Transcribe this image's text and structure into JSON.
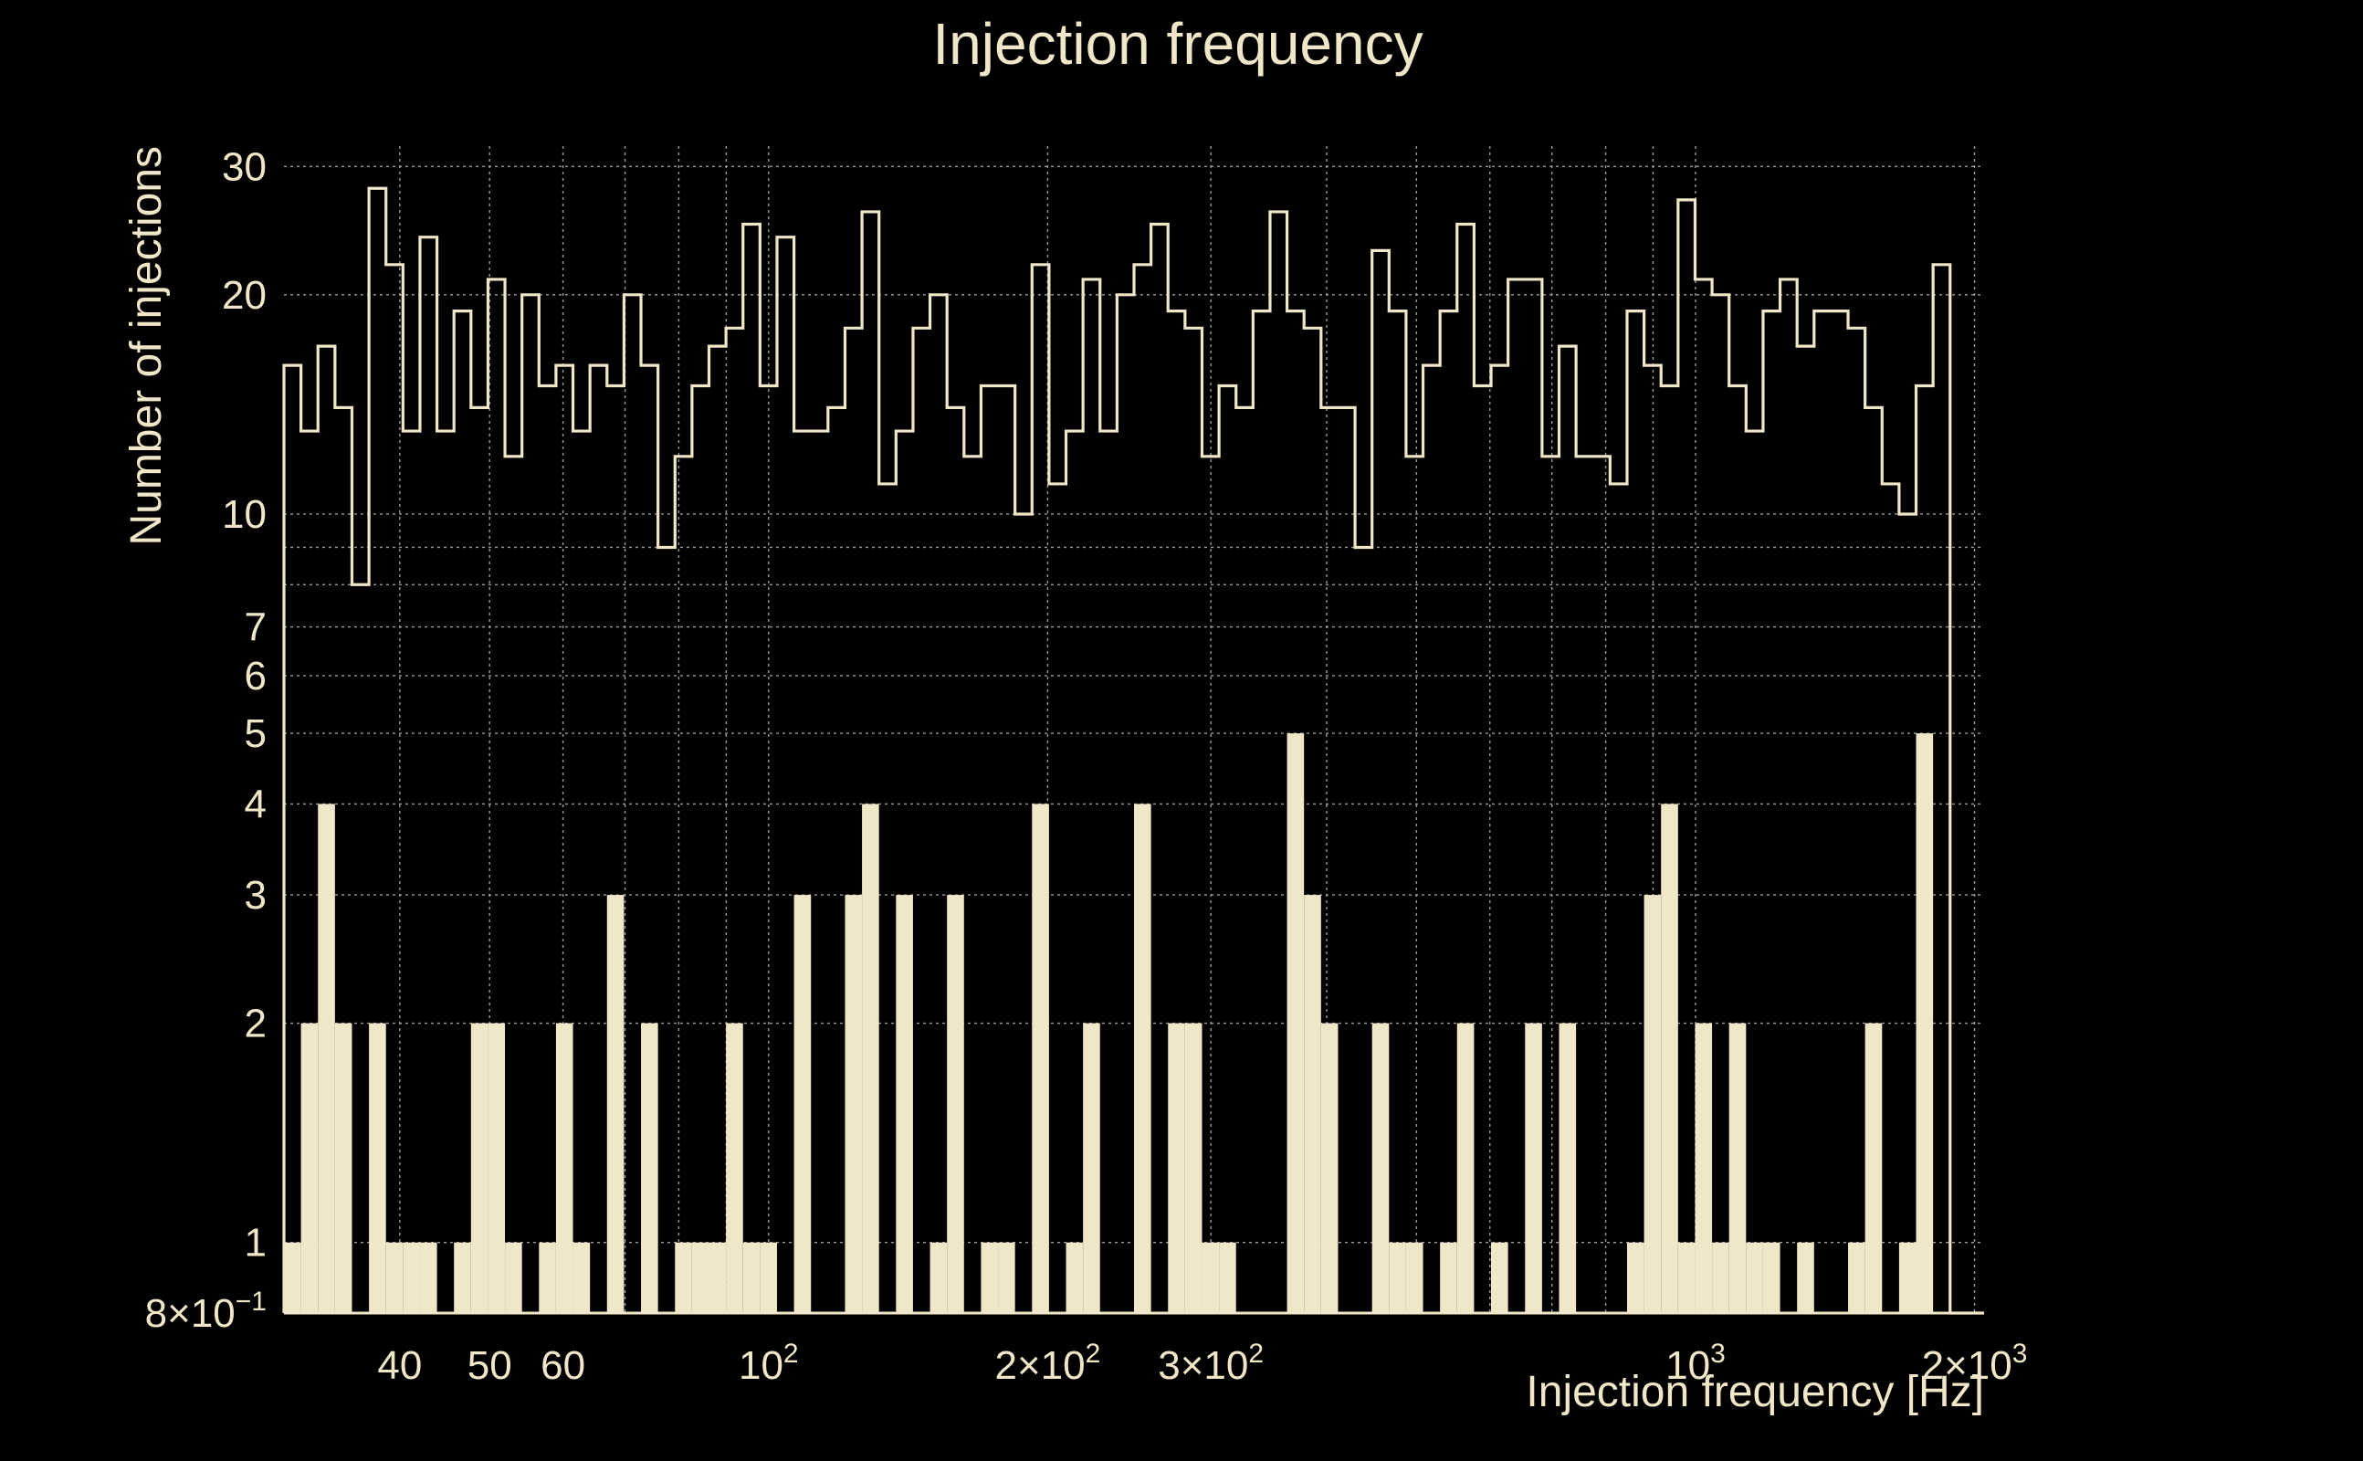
{
  "chart_data": {
    "type": "bar",
    "title": "Injection frequency",
    "xlabel": "Injection frequency [Hz]",
    "ylabel": "Number of injections",
    "xscale": "log",
    "yscale": "log",
    "xlim": [
      30,
      2048
    ],
    "ylim": [
      0.8,
      32
    ],
    "grid": true,
    "colors": {
      "background": "#000000",
      "foreground": "#F0E6C8",
      "grid": "#9a9a9a"
    },
    "x_ticks": [
      {
        "value": 40,
        "label": "40"
      },
      {
        "value": 50,
        "label": "50"
      },
      {
        "value": 60,
        "label": "60"
      },
      {
        "value": 100,
        "label": "10",
        "sup": "2"
      },
      {
        "value": 200,
        "label": "2×10",
        "sup": "2"
      },
      {
        "value": 300,
        "label": "3×10",
        "sup": "2"
      },
      {
        "value": 1000,
        "label": "10",
        "sup": "3"
      },
      {
        "value": 2000,
        "label": "2×10",
        "sup": "3"
      }
    ],
    "y_ticks": [
      {
        "value": 0.8,
        "label": "8×10",
        "sup": "−1"
      },
      {
        "value": 1,
        "label": "1"
      },
      {
        "value": 2,
        "label": "2"
      },
      {
        "value": 3,
        "label": "3"
      },
      {
        "value": 4,
        "label": "4"
      },
      {
        "value": 5,
        "label": "5"
      },
      {
        "value": 6,
        "label": "6"
      },
      {
        "value": 7,
        "label": "7"
      },
      {
        "value": 10,
        "label": "10"
      },
      {
        "value": 20,
        "label": "20"
      },
      {
        "value": 30,
        "label": "30"
      }
    ],
    "bins": {
      "count": 100,
      "range": [
        30,
        2048
      ],
      "scale": "log"
    },
    "series": [
      {
        "style": "step",
        "values": [
          16,
          13,
          17,
          14,
          8,
          28,
          22,
          13,
          24,
          13,
          19,
          14,
          21,
          12,
          20,
          15,
          16,
          13,
          16,
          15,
          20,
          16,
          9,
          12,
          15,
          17,
          18,
          25,
          15,
          24,
          13,
          13,
          14,
          18,
          26,
          11,
          13,
          18,
          20,
          14,
          12,
          15,
          15,
          10,
          22,
          11,
          13,
          21,
          13,
          20,
          22,
          25,
          19,
          18,
          12,
          15,
          14,
          19,
          26,
          19,
          18,
          14,
          14,
          9,
          23,
          19,
          12,
          16,
          19,
          25,
          15,
          16,
          21,
          21,
          12,
          17,
          12,
          12,
          11,
          19,
          16,
          15,
          27,
          21,
          20,
          15,
          13,
          19,
          21,
          17,
          19,
          19,
          18,
          14,
          11,
          10,
          15,
          22,
          0,
          0
        ]
      },
      {
        "style": "filled",
        "values": [
          1,
          2,
          4,
          2,
          0,
          2,
          1,
          1,
          1,
          0,
          1,
          2,
          2,
          1,
          0,
          1,
          2,
          1,
          0,
          3,
          0,
          2,
          0,
          1,
          1,
          1,
          2,
          1,
          1,
          0,
          3,
          0,
          0,
          3,
          4,
          0,
          3,
          0,
          1,
          3,
          0,
          1,
          1,
          0,
          4,
          0,
          1,
          2,
          0,
          0,
          4,
          0,
          2,
          2,
          1,
          1,
          0,
          0,
          0,
          5,
          3,
          2,
          0,
          0,
          2,
          1,
          1,
          0,
          1,
          2,
          0,
          1,
          0,
          2,
          0,
          2,
          0,
          0,
          0,
          1,
          3,
          4,
          1,
          2,
          1,
          2,
          1,
          1,
          0,
          1,
          0,
          0,
          1,
          2,
          0,
          1,
          5,
          0,
          0,
          0
        ]
      }
    ]
  }
}
